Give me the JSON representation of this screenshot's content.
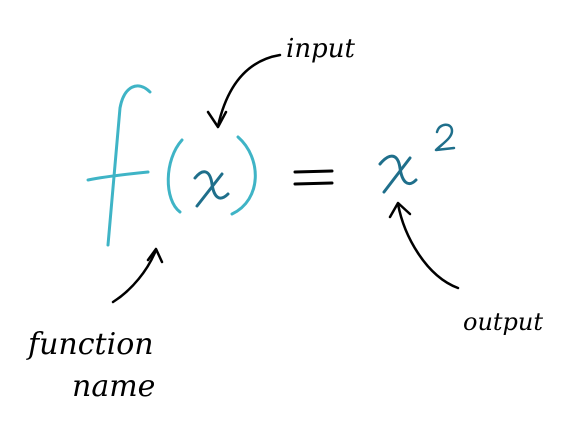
{
  "equation": {
    "function_letter": "f",
    "variable": "x",
    "equals": "=",
    "result_base": "x",
    "result_exponent": "2"
  },
  "labels": {
    "input": "input",
    "output": "output",
    "function_name_line1": "function",
    "function_name_line2": "name"
  },
  "colors": {
    "function_name": "#3fb4c6",
    "variable": "#1f6f8b",
    "annotation": "#000000"
  }
}
